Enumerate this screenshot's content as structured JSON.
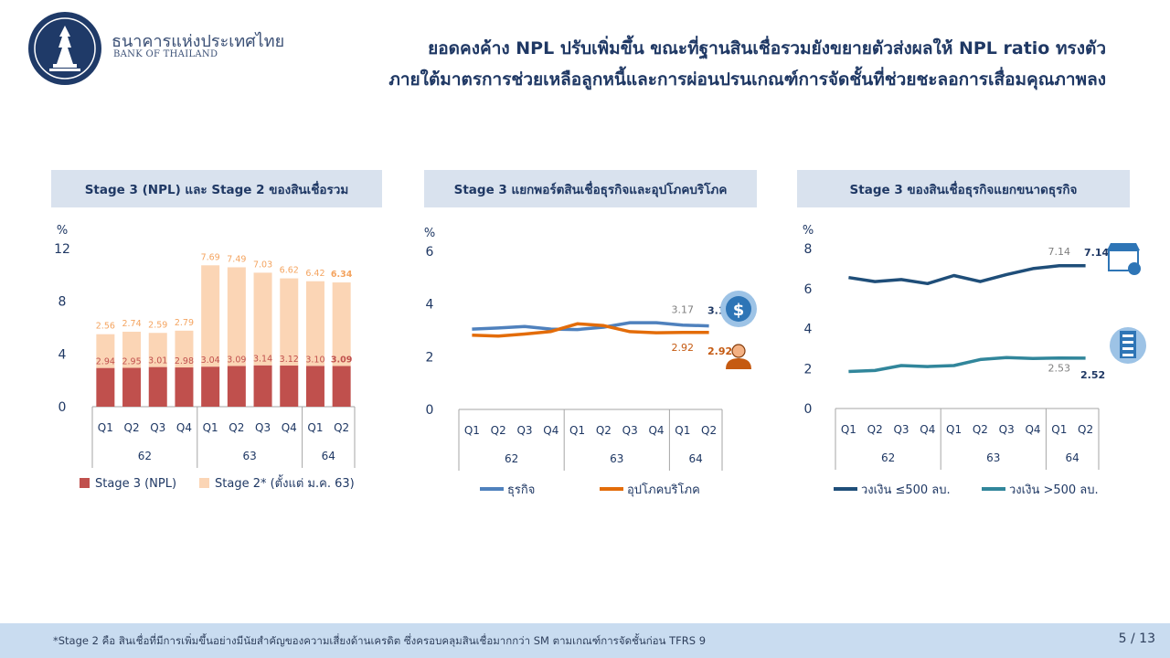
{
  "header": {
    "bank_name_th": "ธนาคารแห่งประเทศไทย",
    "bank_name_en": "BANK OF THAILAND",
    "headline_line1": "ยอดคงค้าง NPL ปรับเพิ่มขึ้น ขณะที่ฐานสินเชื่อรวมยังขยายตัวส่งผลให้ NPL ratio ทรงตัว",
    "headline_line2": "ภายใต้มาตรการช่วยเหลือลูกหนี้และการผ่อนปรนเกณฑ์การจัดชั้นที่ช่วยชะลอการเสื่อมคุณภาพลง"
  },
  "footer": {
    "note": "*Stage 2 คือ สินเชื่อที่มีการเพิ่มขึ้นอย่างมีนัยสำคัญของความเสี่ยงด้านเครดิต ซึ่งครอบคลุมสินเชื่อมากกว่า SM ตามเกณฑ์การจัดชั้นก่อน TFRS 9",
    "page": "5 / 13"
  },
  "chart_data": [
    {
      "type": "bar",
      "stacked": true,
      "title": "Stage 3 (NPL) และ Stage 2 ของสินเชื่อรวม",
      "yunit": "%",
      "ylim": [
        0,
        12
      ],
      "yticks": [
        0,
        4,
        8,
        12
      ],
      "categories": [
        "Q1",
        "Q2",
        "Q3",
        "Q4",
        "Q1",
        "Q2",
        "Q3",
        "Q4",
        "Q1",
        "Q2"
      ],
      "groups": [
        {
          "label": "62",
          "count": 4
        },
        {
          "label": "63",
          "count": 4
        },
        {
          "label": "64",
          "count": 2
        }
      ],
      "series": [
        {
          "name": "Stage 3 (NPL)",
          "color": "#c0504d",
          "label_color": "#c0504d",
          "values": [
            2.94,
            2.95,
            3.01,
            2.98,
            3.04,
            3.09,
            3.14,
            3.12,
            3.1,
            3.09
          ],
          "labels": [
            "2.94",
            "2.95",
            "3.01",
            "2.98",
            "3.04",
            "3.09",
            "3.14",
            "3.12",
            "3.10",
            "3.09"
          ]
        },
        {
          "name": "Stage 2* (ตั้งแต่ ม.ค. 63)",
          "color": "#fbd5b5",
          "label_color": "#f4a460",
          "values": [
            2.56,
            2.74,
            2.59,
            2.79,
            7.69,
            7.49,
            7.03,
            6.62,
            6.42,
            6.34
          ],
          "labels": [
            "2.56",
            "2.74",
            "2.59",
            "2.79",
            "7.69",
            "7.49",
            "7.03",
            "6.62",
            "6.42",
            "6.34"
          ]
        }
      ]
    },
    {
      "type": "line",
      "title": "Stage 3 แยกพอร์ตสินเชื่อธุรกิจและอุปโภคบริโภค",
      "yunit": "%",
      "ylim": [
        0,
        6
      ],
      "yticks": [
        0,
        2,
        4,
        6
      ],
      "categories": [
        "Q1",
        "Q2",
        "Q3",
        "Q4",
        "Q1",
        "Q2",
        "Q3",
        "Q4",
        "Q1",
        "Q2"
      ],
      "groups": [
        {
          "label": "62",
          "count": 4
        },
        {
          "label": "63",
          "count": 4
        },
        {
          "label": "64",
          "count": 2
        }
      ],
      "series": [
        {
          "name": "ธุรกิจ",
          "color": "#4f81bd",
          "values": [
            3.05,
            3.09,
            3.15,
            3.05,
            3.03,
            3.12,
            3.29,
            3.29,
            3.2,
            3.17
          ],
          "labels": [
            "3.17",
            "3.17"
          ]
        },
        {
          "name": "อุปโภคบริโภค",
          "color": "#e36c09",
          "values": [
            2.82,
            2.78,
            2.86,
            2.96,
            3.25,
            3.18,
            2.95,
            2.91,
            2.92,
            2.92
          ],
          "labels": [
            "2.92",
            "2.92"
          ]
        }
      ],
      "icons": [
        "business-loan-icon",
        "consumer-loan-icon"
      ]
    },
    {
      "type": "line",
      "title": "Stage 3 ของสินเชื่อธุรกิจแยกขนาดธุรกิจ",
      "yunit": "%",
      "ylim": [
        0,
        8
      ],
      "yticks": [
        0,
        2,
        4,
        6,
        8
      ],
      "categories": [
        "Q1",
        "Q2",
        "Q3",
        "Q4",
        "Q1",
        "Q2",
        "Q3",
        "Q4",
        "Q1",
        "Q2"
      ],
      "groups": [
        {
          "label": "62",
          "count": 4
        },
        {
          "label": "63",
          "count": 4
        },
        {
          "label": "64",
          "count": 2
        }
      ],
      "series": [
        {
          "name": "วงเงิน ≤500 ลบ.",
          "color": "#1f4e79",
          "values": [
            6.55,
            6.35,
            6.45,
            6.25,
            6.65,
            6.35,
            6.7,
            7.0,
            7.14,
            7.14
          ],
          "labels": [
            "7.14",
            "7.14"
          ]
        },
        {
          "name": "วงเงิน >500 ลบ.",
          "color": "#31869b",
          "values": [
            1.85,
            1.9,
            2.15,
            2.1,
            2.15,
            2.45,
            2.55,
            2.5,
            2.53,
            2.52
          ],
          "labels": [
            "2.53",
            "2.52"
          ]
        }
      ],
      "icons": [
        "shop-icon",
        "building-icon"
      ]
    }
  ]
}
